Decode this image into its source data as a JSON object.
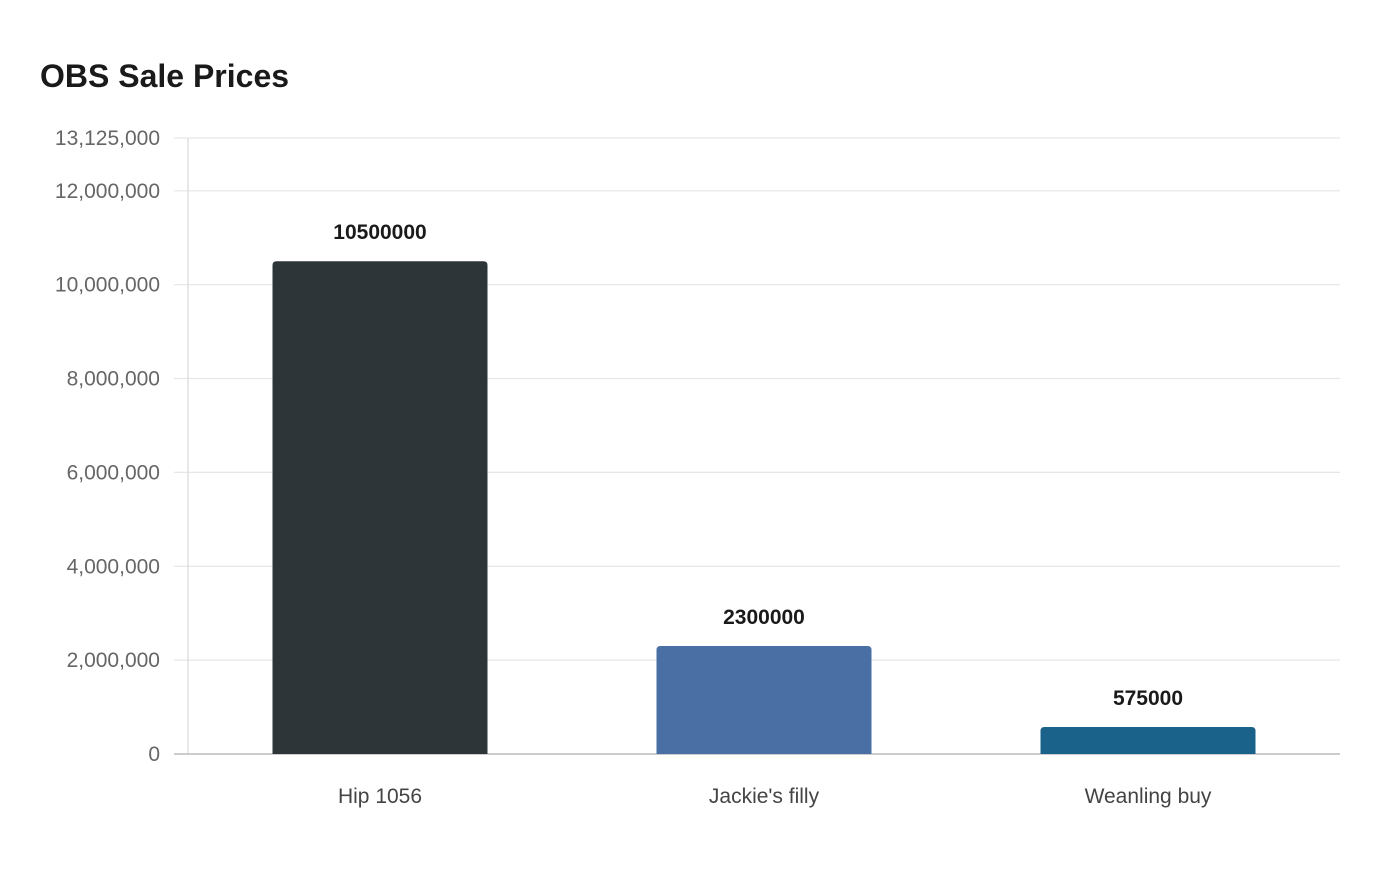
{
  "chart_data": {
    "type": "bar",
    "title": "OBS Sale Prices",
    "xlabel": "",
    "ylabel": "",
    "categories": [
      "Hip 1056",
      "Jackie's filly",
      "Weanling buy"
    ],
    "values": [
      10500000,
      2300000,
      575000
    ],
    "data_labels": [
      "10500000",
      "2300000",
      "575000"
    ],
    "colors": [
      "#2e3538",
      "#4a6fa5",
      "#1a6289"
    ],
    "ylim": [
      0,
      13125000
    ],
    "yticks": [
      0,
      2000000,
      4000000,
      6000000,
      8000000,
      10000000,
      12000000,
      13125000
    ],
    "ytick_labels": [
      "0",
      "2,000,000",
      "4,000,000",
      "6,000,000",
      "8,000,000",
      "10,000,000",
      "12,000,000",
      "13,125,000"
    ],
    "grid": true,
    "legend": "none"
  }
}
